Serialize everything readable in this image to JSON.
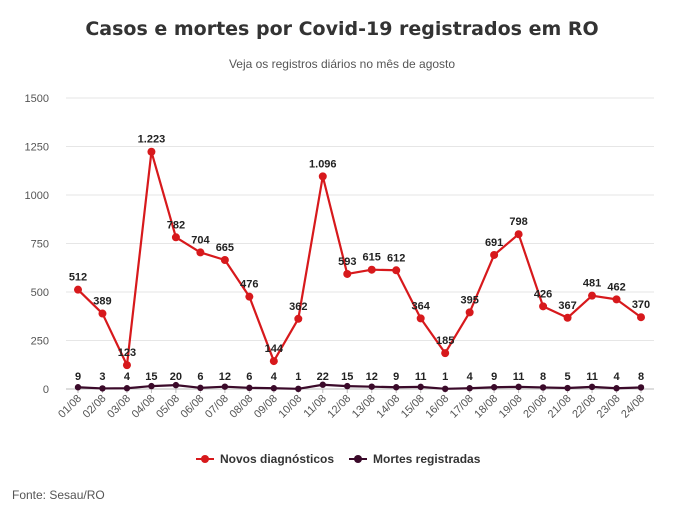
{
  "title": "Casos e mortes por Covid-19 registrados em RO",
  "subtitle": "Veja os registros diários no mês de agosto",
  "source": "Fonte: Sesau/RO",
  "colors": {
    "cases": "#d7191c",
    "deaths": "#3b0a2a",
    "grid": "#e6e6e6"
  },
  "chart_data": {
    "type": "line",
    "categories": [
      "01/08",
      "02/08",
      "03/08",
      "04/08",
      "05/08",
      "06/08",
      "07/08",
      "08/08",
      "09/08",
      "10/08",
      "11/08",
      "12/08",
      "13/08",
      "14/08",
      "15/08",
      "16/08",
      "17/08",
      "18/08",
      "19/08",
      "20/08",
      "21/08",
      "22/08",
      "23/08",
      "24/08"
    ],
    "series": [
      {
        "name": "Novos diagnósticos",
        "values": [
          512,
          389,
          123,
          1223,
          782,
          704,
          665,
          476,
          144,
          362,
          1096,
          593,
          615,
          612,
          364,
          185,
          395,
          691,
          798,
          426,
          367,
          481,
          462,
          370
        ],
        "labels": [
          "512",
          "389",
          "123",
          "1.223",
          "782",
          "704",
          "665",
          "476",
          "144",
          "362",
          "1.096",
          "593",
          "615",
          "612",
          "364",
          "185",
          "395",
          "691",
          "798",
          "426",
          "367",
          "481",
          "462",
          "370"
        ]
      },
      {
        "name": "Mortes registradas",
        "values": [
          9,
          3,
          4,
          15,
          20,
          6,
          12,
          6,
          4,
          1,
          22,
          15,
          12,
          9,
          11,
          1,
          4,
          9,
          11,
          8,
          5,
          11,
          4,
          8
        ],
        "labels": [
          "9",
          "3",
          "4",
          "15",
          "20",
          "6",
          "12",
          "6",
          "4",
          "1",
          "22",
          "15",
          "12",
          "9",
          "11",
          "1",
          "4",
          "9",
          "11",
          "8",
          "5",
          "11",
          "4",
          "8"
        ]
      }
    ],
    "yticks": [
      "0",
      "250",
      "500",
      "750",
      "1000",
      "1250",
      "1500"
    ],
    "ylim": [
      0,
      1500
    ],
    "grid": true,
    "legend": "bottom-center"
  }
}
